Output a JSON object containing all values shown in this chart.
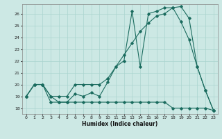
{
  "xlabel": "Humidex (Indice chaleur)",
  "bg_color": "#cce8e4",
  "grid_color": "#aad4cf",
  "line_color": "#1a6b5e",
  "xlim": [
    -0.5,
    23.5
  ],
  "ylim": [
    17.5,
    26.8
  ],
  "xticks": [
    0,
    1,
    2,
    3,
    4,
    5,
    6,
    7,
    8,
    9,
    10,
    11,
    12,
    13,
    14,
    15,
    16,
    17,
    18,
    19,
    20,
    21,
    22,
    23
  ],
  "yticks": [
    18,
    19,
    20,
    21,
    22,
    23,
    24,
    25,
    26
  ],
  "line1_x": [
    0,
    1,
    2,
    3,
    4,
    5,
    6,
    7,
    8,
    9,
    10,
    11,
    12,
    13,
    14,
    15,
    16,
    17,
    18,
    19,
    20,
    21,
    22,
    23
  ],
  "line1_y": [
    19,
    20,
    20,
    18.5,
    18.5,
    18.5,
    18.5,
    18.5,
    18.5,
    18.5,
    18.5,
    18.5,
    18.5,
    18.5,
    18.5,
    18.5,
    18.5,
    18.5,
    18.0,
    18.0,
    18.0,
    18.0,
    18.0,
    17.8
  ],
  "line2_x": [
    0,
    1,
    2,
    3,
    4,
    5,
    6,
    7,
    8,
    9,
    10,
    11,
    12,
    13,
    14,
    15,
    16,
    17,
    18,
    19,
    20,
    21,
    22,
    23
  ],
  "line2_y": [
    19,
    20,
    20,
    19,
    19,
    19,
    20,
    20,
    20,
    20,
    20.5,
    21.5,
    22.5,
    23.5,
    24.5,
    25.2,
    25.8,
    26.0,
    26.5,
    26.6,
    25.6,
    21.5,
    19.5,
    17.8
  ],
  "line3_x": [
    0,
    1,
    2,
    3,
    4,
    5,
    6,
    7,
    8,
    9,
    10,
    11,
    12,
    13,
    14,
    15,
    16,
    17,
    18,
    19,
    20,
    21,
    22,
    23
  ],
  "line3_y": [
    19,
    20,
    20,
    19,
    18.5,
    18.5,
    19.2,
    19.0,
    19.3,
    19.0,
    20.2,
    21.5,
    22.0,
    26.2,
    21.5,
    26.0,
    26.2,
    26.5,
    26.5,
    25.3,
    23.8,
    21.5,
    19.5,
    17.8
  ]
}
